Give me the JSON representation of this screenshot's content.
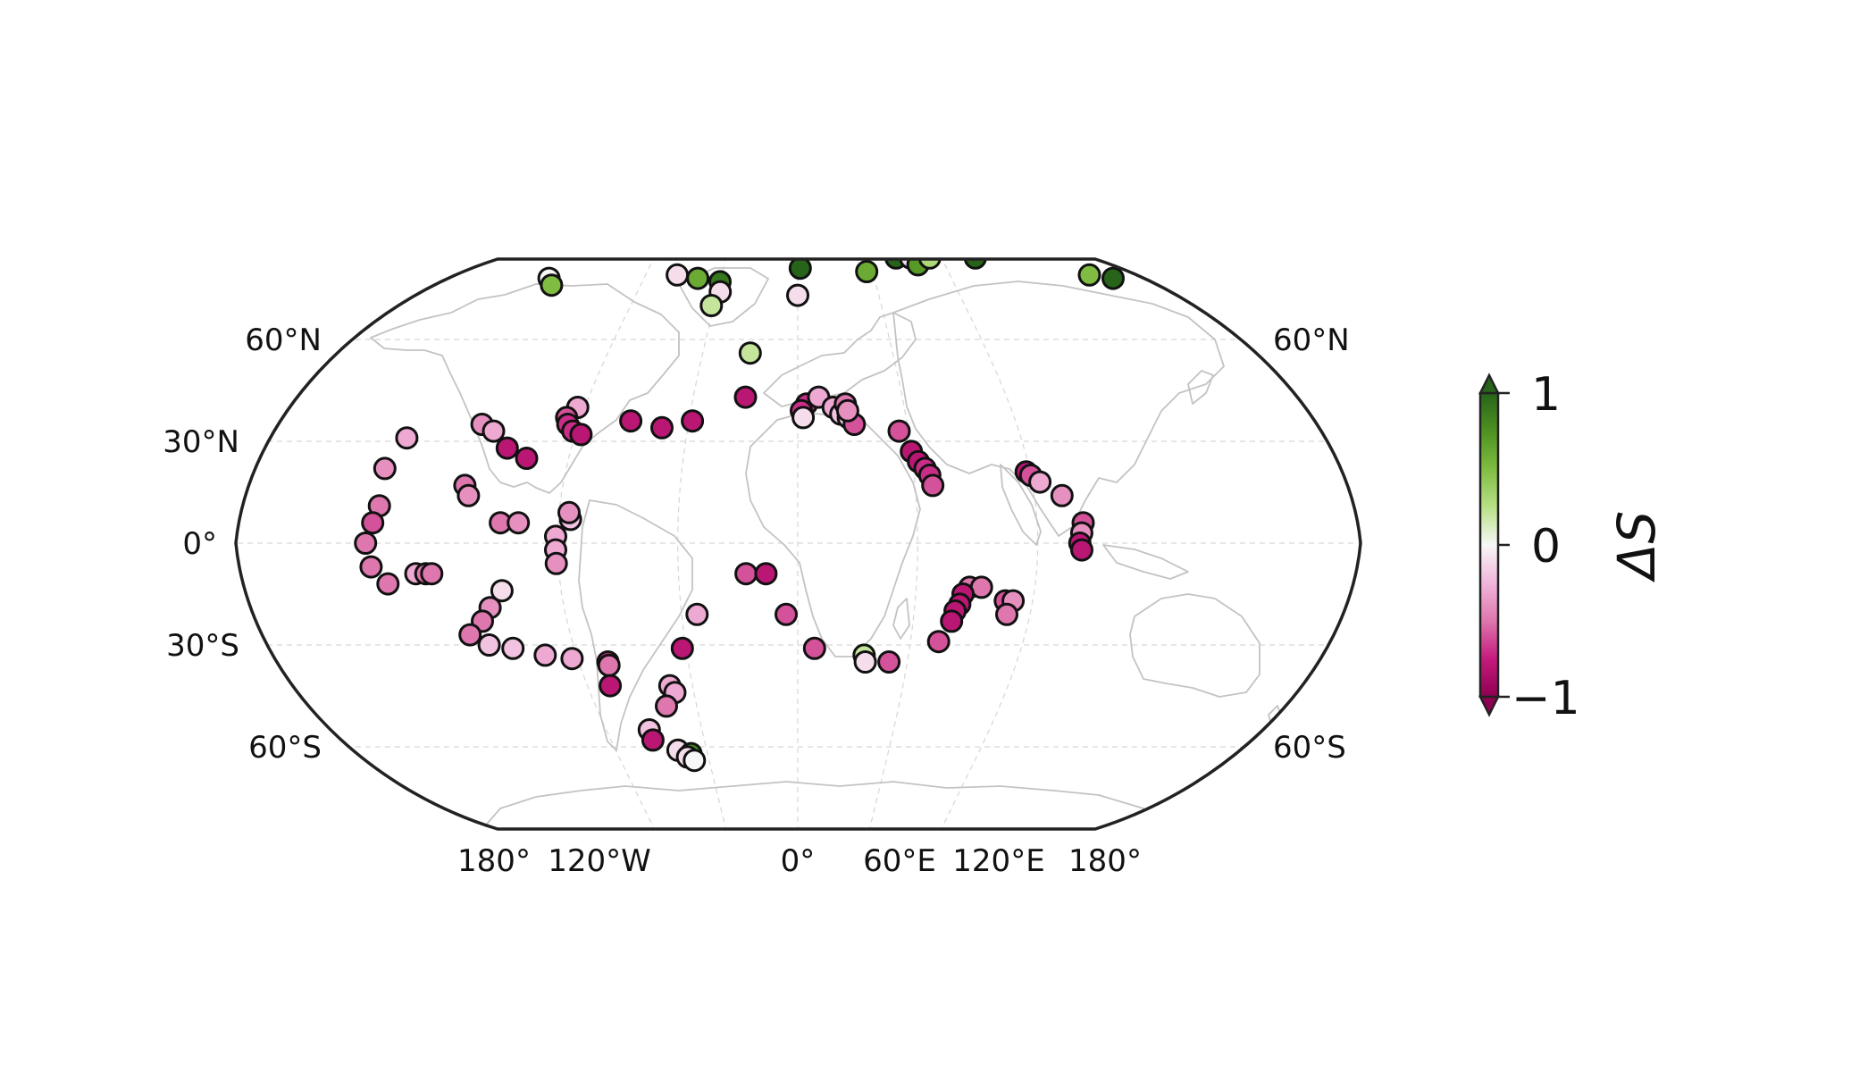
{
  "figure": {
    "colorbar": {
      "label": "ΔS",
      "ticks": [
        "1",
        "0",
        "−1"
      ],
      "tick_values": [
        1,
        0,
        -1
      ],
      "range": [
        -1,
        1
      ],
      "extend": "both",
      "colormap": "PiYG",
      "colors": {
        "-1": "#8e0152",
        "-0.75": "#c51b7d",
        "-0.5": "#de77ae",
        "-0.25": "#f1b6da",
        "0": "#f7f7f7",
        "0.25": "#b8e186",
        "0.5": "#7fbc41",
        "0.75": "#4d9221",
        "1": "#276419"
      }
    },
    "lat_labels": [
      "60°N",
      "30°N",
      "0°",
      "30°S",
      "60°S"
    ],
    "lat_label_values": [
      60,
      30,
      0,
      -30,
      -60
    ],
    "right_lat_labels": [
      "60°N",
      "60°S"
    ],
    "right_lat_label_values": [
      60,
      -60
    ],
    "lon_labels": [
      "180°",
      "120°W",
      "0°",
      "60°E",
      "120°E",
      "180°"
    ],
    "projection": "Robinson",
    "gridlines": true,
    "coastlines": "light-gray"
  },
  "chart_data": {
    "type": "scatter",
    "map_projection": "Robinson",
    "value_name": "ΔS",
    "points": [
      {
        "lon": -194,
        "lat": 78,
        "v": 0.0
      },
      {
        "lon": -188,
        "lat": 76,
        "v": 0.5
      },
      {
        "lon": -95,
        "lat": 79,
        "v": -0.1
      },
      {
        "lon": -78,
        "lat": 78,
        "v": 0.6
      },
      {
        "lon": -60,
        "lat": 77,
        "v": 0.9
      },
      {
        "lon": -58,
        "lat": 74,
        "v": -0.1
      },
      {
        "lon": -62,
        "lat": 70,
        "v": 0.2
      },
      {
        "lon": 2,
        "lat": 81,
        "v": 1.0
      },
      {
        "lon": 0,
        "lat": 73,
        "v": -0.1
      },
      {
        "lon": 55,
        "lat": 80,
        "v": 0.6
      },
      {
        "lon": 82,
        "lat": 84,
        "v": 1.0
      },
      {
        "lon": 94,
        "lat": 84,
        "v": -0.1
      },
      {
        "lon": 98,
        "lat": 82,
        "v": 0.7
      },
      {
        "lon": 110,
        "lat": 84,
        "v": 0.3
      },
      {
        "lon": 148,
        "lat": 84,
        "v": 1.0
      },
      {
        "lon": 230,
        "lat": 79,
        "v": 0.5
      },
      {
        "lon": 246,
        "lat": 78,
        "v": 1.0
      },
      {
        "lon": -30,
        "lat": 56,
        "v": 0.2
      },
      {
        "lon": -30,
        "lat": 43,
        "v": -0.8
      },
      {
        "lon": -58,
        "lat": 36,
        "v": -0.8
      },
      {
        "lon": -74,
        "lat": 34,
        "v": -0.8
      },
      {
        "lon": -92,
        "lat": 36,
        "v": -0.8
      },
      {
        "lon": -124,
        "lat": 40,
        "v": -0.3
      },
      {
        "lon": -128,
        "lat": 37,
        "v": -0.6
      },
      {
        "lon": -126,
        "lat": 35,
        "v": -0.7
      },
      {
        "lon": -122,
        "lat": 33,
        "v": -0.7
      },
      {
        "lon": -117,
        "lat": 32,
        "v": -0.8
      },
      {
        "lon": -154,
        "lat": 28,
        "v": -0.8
      },
      {
        "lon": -173,
        "lat": 35,
        "v": -0.4
      },
      {
        "lon": -165,
        "lat": 33,
        "v": -0.3
      },
      {
        "lon": -142,
        "lat": 25,
        "v": -0.8
      },
      {
        "lon": 5,
        "lat": 41,
        "v": -0.7
      },
      {
        "lon": 2,
        "lat": 39,
        "v": -0.7
      },
      {
        "lon": 3,
        "lat": 37,
        "v": -0.1
      },
      {
        "lon": 12,
        "lat": 43,
        "v": -0.3
      },
      {
        "lon": 20,
        "lat": 40,
        "v": -0.3
      },
      {
        "lon": 24,
        "lat": 38,
        "v": -0.2
      },
      {
        "lon": 28,
        "lat": 37,
        "v": -0.1
      },
      {
        "lon": 31,
        "lat": 35,
        "v": -0.6
      },
      {
        "lon": 27,
        "lat": 41,
        "v": -0.5
      },
      {
        "lon": 28,
        "lat": 39,
        "v": -0.4
      },
      {
        "lon": 55,
        "lat": 33,
        "v": -0.6
      },
      {
        "lon": 60,
        "lat": 27,
        "v": -0.8
      },
      {
        "lon": 63,
        "lat": 24,
        "v": -0.8
      },
      {
        "lon": 66,
        "lat": 22,
        "v": -0.7
      },
      {
        "lon": 68,
        "lat": 20,
        "v": -0.7
      },
      {
        "lon": 69,
        "lat": 17,
        "v": -0.6
      },
      {
        "lon": 118,
        "lat": 21,
        "v": -0.8
      },
      {
        "lon": 120,
        "lat": 20,
        "v": -0.6
      },
      {
        "lon": 124,
        "lat": 18,
        "v": -0.3
      },
      {
        "lon": 134,
        "lat": 14,
        "v": -0.4
      },
      {
        "lon": 143,
        "lat": 6,
        "v": -0.6
      },
      {
        "lon": 142,
        "lat": 3,
        "v": -0.4
      },
      {
        "lon": 141,
        "lat": 0,
        "v": -0.8
      },
      {
        "lon": 142,
        "lat": -2,
        "v": -0.8
      },
      {
        "lon": -210,
        "lat": 31,
        "v": -0.3
      },
      {
        "lon": -214,
        "lat": 22,
        "v": -0.4
      },
      {
        "lon": -211,
        "lat": 11,
        "v": -0.5
      },
      {
        "lon": -213,
        "lat": 6,
        "v": -0.6
      },
      {
        "lon": -216,
        "lat": 0,
        "v": -0.5
      },
      {
        "lon": -214,
        "lat": -7,
        "v": -0.5
      },
      {
        "lon": -207,
        "lat": -12,
        "v": -0.5
      },
      {
        "lon": -192,
        "lat": -9,
        "v": -0.3
      },
      {
        "lon": -187,
        "lat": -9,
        "v": -0.5
      },
      {
        "lon": -184,
        "lat": -9,
        "v": -0.5
      },
      {
        "lon": -170,
        "lat": 17,
        "v": -0.5
      },
      {
        "lon": -167,
        "lat": 14,
        "v": -0.4
      },
      {
        "lon": -149,
        "lat": 6,
        "v": -0.5
      },
      {
        "lon": -140,
        "lat": 6,
        "v": -0.4
      },
      {
        "lon": -114,
        "lat": 7,
        "v": -0.2
      },
      {
        "lon": -115,
        "lat": 9,
        "v": -0.4
      },
      {
        "lon": -121,
        "lat": 2,
        "v": -0.3
      },
      {
        "lon": -121,
        "lat": -2,
        "v": -0.3
      },
      {
        "lon": -121,
        "lat": -6,
        "v": -0.4
      },
      {
        "lon": -150,
        "lat": -14,
        "v": -0.1
      },
      {
        "lon": -158,
        "lat": -19,
        "v": -0.4
      },
      {
        "lon": -164,
        "lat": -23,
        "v": -0.5
      },
      {
        "lon": -173,
        "lat": -27,
        "v": -0.5
      },
      {
        "lon": -165,
        "lat": -30,
        "v": -0.2
      },
      {
        "lon": -153,
        "lat": -31,
        "v": -0.2
      },
      {
        "lon": -137,
        "lat": -33,
        "v": -0.3
      },
      {
        "lon": -123,
        "lat": -34,
        "v": -0.3
      },
      {
        "lon": -104,
        "lat": -35,
        "v": -0.7
      },
      {
        "lon": -104,
        "lat": -36,
        "v": -0.5
      },
      {
        "lon": -107,
        "lat": -42,
        "v": -0.8
      },
      {
        "lon": -52,
        "lat": -21,
        "v": -0.3
      },
      {
        "lon": -62,
        "lat": -31,
        "v": -0.8
      },
      {
        "lon": -73,
        "lat": -42,
        "v": -0.3
      },
      {
        "lon": -71,
        "lat": -44,
        "v": -0.3
      },
      {
        "lon": -78,
        "lat": -48,
        "v": -0.5
      },
      {
        "lon": -93,
        "lat": -55,
        "v": -0.2
      },
      {
        "lon": -93,
        "lat": -58,
        "v": -0.8
      },
      {
        "lon": -79,
        "lat": -61,
        "v": -0.1
      },
      {
        "lon": -71,
        "lat": -62,
        "v": 0.8
      },
      {
        "lon": -74,
        "lat": -63,
        "v": -0.1
      },
      {
        "lon": -70,
        "lat": -64,
        "v": 0.0
      },
      {
        "lon": -26,
        "lat": -9,
        "v": -0.6
      },
      {
        "lon": -16,
        "lat": -9,
        "v": -0.8
      },
      {
        "lon": -6,
        "lat": -21,
        "v": -0.6
      },
      {
        "lon": 9,
        "lat": -31,
        "v": -0.6
      },
      {
        "lon": 36,
        "lat": -33,
        "v": 0.2
      },
      {
        "lon": 37,
        "lat": -35,
        "v": -0.1
      },
      {
        "lon": 50,
        "lat": -35,
        "v": -0.6
      },
      {
        "lon": 75,
        "lat": -29,
        "v": -0.6
      },
      {
        "lon": 87,
        "lat": -13,
        "v": -0.5
      },
      {
        "lon": 93,
        "lat": -13,
        "v": -0.5
      },
      {
        "lon": 84,
        "lat": -15,
        "v": -0.8
      },
      {
        "lon": 83,
        "lat": -18,
        "v": -0.8
      },
      {
        "lon": 81,
        "lat": -20,
        "v": -0.8
      },
      {
        "lon": 80,
        "lat": -23,
        "v": -0.8
      },
      {
        "lon": 106,
        "lat": -17,
        "v": -0.6
      },
      {
        "lon": 110,
        "lat": -17,
        "v": -0.4
      },
      {
        "lon": 108,
        "lat": -21,
        "v": -0.5
      }
    ]
  }
}
